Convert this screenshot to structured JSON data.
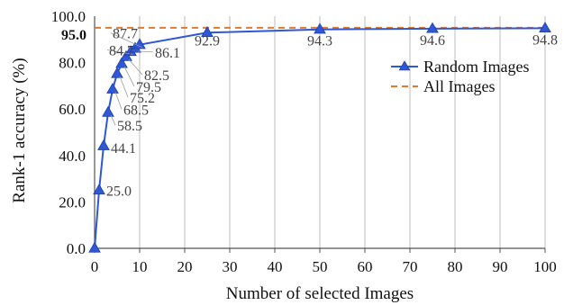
{
  "chart_data": {
    "type": "line",
    "xlabel": "Number of selected Images",
    "ylabel": "Rank-1 accuracy (%)",
    "xlim": [
      0,
      100
    ],
    "ylim": [
      0,
      100
    ],
    "xticks": [
      "0",
      "10",
      "20",
      "30",
      "40",
      "50",
      "60",
      "70",
      "80",
      "90",
      "100"
    ],
    "yticks": [
      "0.0",
      "20.0",
      "40.0",
      "60.0",
      "80.0",
      "100.0"
    ],
    "grid": "vertical",
    "legend_position": "right",
    "series": [
      {
        "name": "Random Images",
        "color": "#2f57d6",
        "marker": "triangle",
        "x": [
          0,
          1,
          2,
          3,
          4,
          5,
          6,
          7,
          8,
          9,
          10,
          25,
          50,
          75,
          100
        ],
        "values": [
          0,
          25.0,
          44.1,
          58.5,
          68.5,
          75.2,
          79.5,
          82.5,
          84.7,
          86.1,
          87.7,
          92.9,
          94.3,
          94.6,
          94.8
        ],
        "labels": [
          "",
          "25.0",
          "44.1",
          "58.5",
          "68.5",
          "75.2",
          "79.5",
          "82.5",
          "84.7",
          "86.1",
          "87.7",
          "92.9",
          "94.3",
          "94.6",
          "94.8"
        ]
      },
      {
        "name": "All Images",
        "color": "#e07a30",
        "style": "dashed",
        "value": 95.0,
        "label": "95.0"
      }
    ]
  }
}
